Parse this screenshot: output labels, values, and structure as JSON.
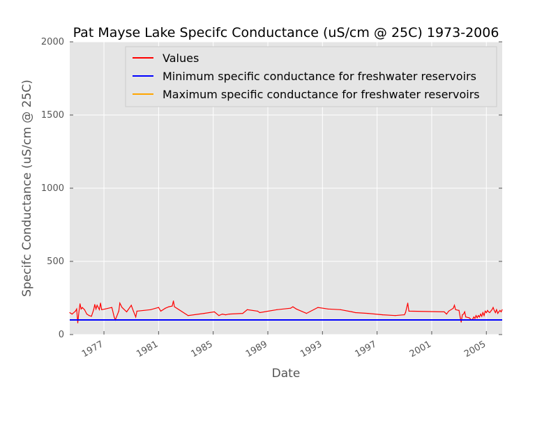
{
  "chart_data": {
    "type": "line",
    "title": "Pat Mayse Lake Specifc Conductance (uS/cm @ 25C) 1973-2006",
    "xlabel": "Date",
    "ylabel": "Specifc Conductance (uS/cm @ 25C)",
    "xlim": [
      "1974-07-01",
      "2006-03-01"
    ],
    "ylim": [
      0,
      2000
    ],
    "x_ticks": [
      {
        "date": "1977-01-01",
        "label": "1977"
      },
      {
        "date": "1981-01-01",
        "label": "1981"
      },
      {
        "date": "1985-01-01",
        "label": "1985"
      },
      {
        "date": "1989-01-01",
        "label": "1989"
      },
      {
        "date": "1993-01-01",
        "label": "1993"
      },
      {
        "date": "1997-01-01",
        "label": "1997"
      },
      {
        "date": "2001-01-01",
        "label": "2001"
      },
      {
        "date": "2005-01-01",
        "label": "2005"
      }
    ],
    "y_ticks": [
      0,
      500,
      1000,
      1500,
      2000
    ],
    "grid": true,
    "legend_position": "top-right",
    "background": "#e5e5e5",
    "series": [
      {
        "name": "Values",
        "color": "#ff0000",
        "points": [
          [
            "1974-07-01",
            150
          ],
          [
            "1974-09-01",
            140
          ],
          [
            "1974-12-01",
            160
          ],
          [
            "1975-01-01",
            175
          ],
          [
            "1975-02-01",
            80
          ],
          [
            "1975-03-01",
            150
          ],
          [
            "1975-04-01",
            210
          ],
          [
            "1975-05-01",
            175
          ],
          [
            "1975-06-01",
            185
          ],
          [
            "1975-08-01",
            170
          ],
          [
            "1975-10-01",
            140
          ],
          [
            "1975-12-01",
            130
          ],
          [
            "1976-02-01",
            125
          ],
          [
            "1976-04-01",
            170
          ],
          [
            "1976-05-01",
            205
          ],
          [
            "1976-06-01",
            175
          ],
          [
            "1976-07-01",
            200
          ],
          [
            "1976-09-01",
            170
          ],
          [
            "1976-10-01",
            215
          ],
          [
            "1976-11-01",
            170
          ],
          [
            "1977-02-01",
            175
          ],
          [
            "1977-08-01",
            185
          ],
          [
            "1977-10-01",
            120
          ],
          [
            "1977-11-01",
            100
          ],
          [
            "1978-02-01",
            160
          ],
          [
            "1978-03-01",
            215
          ],
          [
            "1978-05-01",
            185
          ],
          [
            "1978-09-01",
            155
          ],
          [
            "1979-01-01",
            200
          ],
          [
            "1979-03-01",
            160
          ],
          [
            "1979-05-01",
            120
          ],
          [
            "1979-06-01",
            160
          ],
          [
            "1980-06-01",
            170
          ],
          [
            "1981-01-01",
            185
          ],
          [
            "1981-03-01",
            160
          ],
          [
            "1981-07-01",
            180
          ],
          [
            "1981-10-01",
            190
          ],
          [
            "1982-01-01",
            195
          ],
          [
            "1982-02-01",
            230
          ],
          [
            "1982-03-01",
            190
          ],
          [
            "1983-03-01",
            130
          ],
          [
            "1984-05-01",
            145
          ],
          [
            "1985-02-01",
            155
          ],
          [
            "1985-06-01",
            130
          ],
          [
            "1985-09-01",
            140
          ],
          [
            "1985-12-01",
            135
          ],
          [
            "1986-03-01",
            140
          ],
          [
            "1987-03-01",
            145
          ],
          [
            "1987-07-01",
            170
          ],
          [
            "1988-04-01",
            160
          ],
          [
            "1988-06-01",
            150
          ],
          [
            "1989-09-01",
            170
          ],
          [
            "1990-09-01",
            180
          ],
          [
            "1990-11-01",
            190
          ],
          [
            "1991-02-01",
            175
          ],
          [
            "1991-11-01",
            145
          ],
          [
            "1992-09-01",
            185
          ],
          [
            "1993-06-01",
            175
          ],
          [
            "1994-05-01",
            170
          ],
          [
            "1995-03-01",
            155
          ],
          [
            "1995-06-01",
            150
          ],
          [
            "1996-05-01",
            145
          ],
          [
            "1997-06-01",
            135
          ],
          [
            "1998-05-01",
            130
          ],
          [
            "1999-01-01",
            135
          ],
          [
            "1999-02-01",
            150
          ],
          [
            "1999-04-01",
            215
          ],
          [
            "1999-05-01",
            160
          ],
          [
            "2001-12-01",
            155
          ],
          [
            "2002-02-01",
            140
          ],
          [
            "2002-04-01",
            160
          ],
          [
            "2002-08-01",
            180
          ],
          [
            "2002-09-01",
            200
          ],
          [
            "2002-10-01",
            170
          ],
          [
            "2003-01-01",
            165
          ],
          [
            "2003-02-01",
            120
          ],
          [
            "2003-03-01",
            85
          ],
          [
            "2003-04-01",
            135
          ],
          [
            "2003-05-01",
            140
          ],
          [
            "2003-06-01",
            155
          ],
          [
            "2003-07-01",
            120
          ],
          [
            "2003-10-01",
            115
          ],
          [
            "2003-12-01",
            100
          ],
          [
            "2004-01-01",
            105
          ],
          [
            "2004-02-01",
            120
          ],
          [
            "2004-03-01",
            110
          ],
          [
            "2004-04-01",
            130
          ],
          [
            "2004-05-01",
            115
          ],
          [
            "2004-06-01",
            130
          ],
          [
            "2004-07-01",
            120
          ],
          [
            "2004-08-01",
            140
          ],
          [
            "2004-09-01",
            125
          ],
          [
            "2004-10-01",
            150
          ],
          [
            "2004-11-01",
            130
          ],
          [
            "2004-12-01",
            160
          ],
          [
            "2005-01-01",
            150
          ],
          [
            "2005-02-01",
            165
          ],
          [
            "2005-03-01",
            155
          ],
          [
            "2005-04-01",
            150
          ],
          [
            "2005-05-01",
            160
          ],
          [
            "2005-06-01",
            170
          ],
          [
            "2005-07-01",
            185
          ],
          [
            "2005-08-01",
            165
          ],
          [
            "2005-09-01",
            150
          ],
          [
            "2005-10-01",
            170
          ],
          [
            "2005-11-01",
            145
          ],
          [
            "2005-12-01",
            155
          ],
          [
            "2006-01-01",
            165
          ],
          [
            "2006-02-01",
            155
          ],
          [
            "2006-03-01",
            170
          ]
        ]
      },
      {
        "name": "Minimum specific conductance for freshwater reservoirs",
        "color": "#0000ff",
        "constant": 100
      },
      {
        "name": "Maximum specific conductance for freshwater reservoirs",
        "color": "#ffa500",
        "constant": null
      }
    ]
  }
}
